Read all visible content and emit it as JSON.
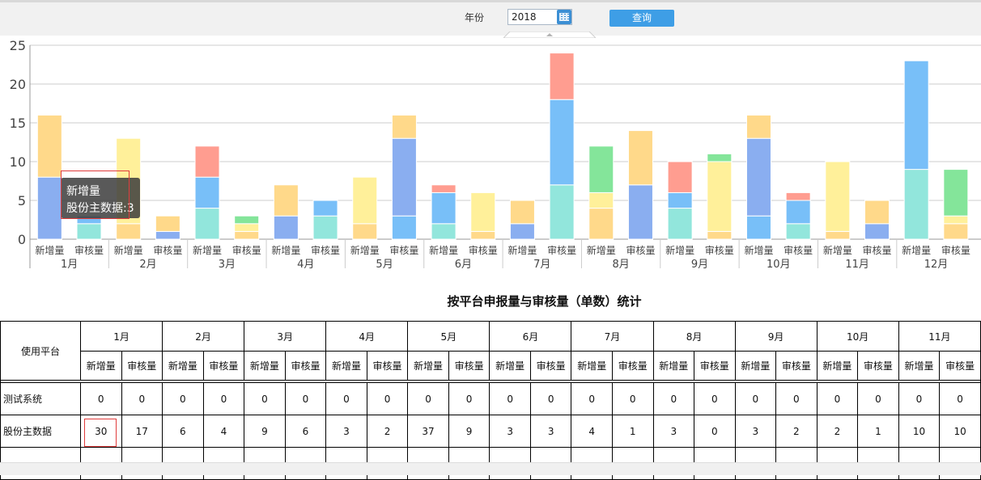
{
  "toolbar": {
    "year_label": "年份",
    "year_value": "2018",
    "query_label": "查询",
    "calendar_icon": "calendar-icon"
  },
  "chart_data": {
    "type": "bar",
    "stacked": true,
    "ylim": [
      0,
      25
    ],
    "yticks": [
      0,
      5,
      10,
      15,
      20,
      25
    ],
    "grid": true,
    "months": [
      "1月",
      "2月",
      "3月",
      "4月",
      "5月",
      "6月",
      "7月",
      "8月",
      "9月",
      "10月",
      "11月",
      "12月"
    ],
    "sub_categories": [
      "新增量",
      "审核量"
    ],
    "bars": [
      {
        "month": "1月",
        "sub": "新增量",
        "segments": [
          {
            "value": 8,
            "color": "#8aaef0"
          },
          {
            "value": 8,
            "color": "#ffd98a"
          }
        ]
      },
      {
        "month": "1月",
        "sub": "审核量",
        "segments": [
          {
            "value": 2,
            "color": "#92e6dc"
          },
          {
            "value": 1,
            "color": "#78bff8"
          }
        ]
      },
      {
        "month": "2月",
        "sub": "新增量",
        "segments": [
          {
            "value": 2,
            "color": "#ffd98a"
          },
          {
            "value": 11,
            "color": "#fff09a"
          }
        ]
      },
      {
        "month": "2月",
        "sub": "审核量",
        "segments": [
          {
            "value": 1,
            "color": "#8aaef0"
          },
          {
            "value": 2,
            "color": "#ffd98a"
          }
        ]
      },
      {
        "month": "3月",
        "sub": "新增量",
        "segments": [
          {
            "value": 4,
            "color": "#92e6dc"
          },
          {
            "value": 4,
            "color": "#78bff8"
          },
          {
            "value": 4,
            "color": "#ff9d90"
          }
        ]
      },
      {
        "month": "3月",
        "sub": "审核量",
        "segments": [
          {
            "value": 1,
            "color": "#ffd98a"
          },
          {
            "value": 1,
            "color": "#fff09a"
          },
          {
            "value": 1,
            "color": "#84e59a"
          }
        ]
      },
      {
        "month": "4月",
        "sub": "新增量",
        "segments": [
          {
            "value": 3,
            "color": "#8aaef0"
          },
          {
            "value": 4,
            "color": "#ffd98a"
          }
        ]
      },
      {
        "month": "4月",
        "sub": "审核量",
        "segments": [
          {
            "value": 3,
            "color": "#92e6dc"
          },
          {
            "value": 2,
            "color": "#78bff8"
          }
        ]
      },
      {
        "month": "5月",
        "sub": "新增量",
        "segments": [
          {
            "value": 2,
            "color": "#ffd98a"
          },
          {
            "value": 6,
            "color": "#fff09a"
          }
        ]
      },
      {
        "month": "5月",
        "sub": "审核量",
        "segments": [
          {
            "value": 3,
            "color": "#78bff8"
          },
          {
            "value": 10,
            "color": "#8aaef0"
          },
          {
            "value": 3,
            "color": "#ffd98a"
          }
        ]
      },
      {
        "month": "6月",
        "sub": "新增量",
        "segments": [
          {
            "value": 2,
            "color": "#92e6dc"
          },
          {
            "value": 4,
            "color": "#78bff8"
          },
          {
            "value": 1,
            "color": "#ff9d90"
          }
        ]
      },
      {
        "month": "6月",
        "sub": "审核量",
        "segments": [
          {
            "value": 1,
            "color": "#ffd98a"
          },
          {
            "value": 5,
            "color": "#fff09a"
          }
        ]
      },
      {
        "month": "7月",
        "sub": "新增量",
        "segments": [
          {
            "value": 2,
            "color": "#8aaef0"
          },
          {
            "value": 3,
            "color": "#ffd98a"
          }
        ]
      },
      {
        "month": "7月",
        "sub": "审核量",
        "segments": [
          {
            "value": 7,
            "color": "#92e6dc"
          },
          {
            "value": 11,
            "color": "#78bff8"
          },
          {
            "value": 6,
            "color": "#ff9d90"
          }
        ]
      },
      {
        "month": "8月",
        "sub": "新增量",
        "segments": [
          {
            "value": 4,
            "color": "#ffd98a"
          },
          {
            "value": 2,
            "color": "#fff09a"
          },
          {
            "value": 6,
            "color": "#84e59a"
          }
        ]
      },
      {
        "month": "8月",
        "sub": "审核量",
        "segments": [
          {
            "value": 7,
            "color": "#8aaef0"
          },
          {
            "value": 7,
            "color": "#ffd98a"
          }
        ]
      },
      {
        "month": "9月",
        "sub": "新增量",
        "segments": [
          {
            "value": 4,
            "color": "#92e6dc"
          },
          {
            "value": 2,
            "color": "#78bff8"
          },
          {
            "value": 4,
            "color": "#ff9d90"
          }
        ]
      },
      {
        "month": "9月",
        "sub": "审核量",
        "segments": [
          {
            "value": 1,
            "color": "#ffd98a"
          },
          {
            "value": 9,
            "color": "#fff09a"
          },
          {
            "value": 1,
            "color": "#84e59a"
          }
        ]
      },
      {
        "month": "10月",
        "sub": "新增量",
        "segments": [
          {
            "value": 3,
            "color": "#78bff8"
          },
          {
            "value": 10,
            "color": "#8aaef0"
          },
          {
            "value": 3,
            "color": "#ffd98a"
          }
        ]
      },
      {
        "month": "10月",
        "sub": "审核量",
        "segments": [
          {
            "value": 2,
            "color": "#92e6dc"
          },
          {
            "value": 3,
            "color": "#78bff8"
          },
          {
            "value": 1,
            "color": "#ff9d90"
          }
        ]
      },
      {
        "month": "11月",
        "sub": "新增量",
        "segments": [
          {
            "value": 1,
            "color": "#ffd98a"
          },
          {
            "value": 9,
            "color": "#fff09a"
          }
        ]
      },
      {
        "month": "11月",
        "sub": "审核量",
        "segments": [
          {
            "value": 2,
            "color": "#8aaef0"
          },
          {
            "value": 3,
            "color": "#ffd98a"
          }
        ]
      },
      {
        "month": "12月",
        "sub": "新增量",
        "segments": [
          {
            "value": 9,
            "color": "#92e6dc"
          },
          {
            "value": 14,
            "color": "#78bff8"
          }
        ]
      },
      {
        "month": "12月",
        "sub": "审核量",
        "segments": [
          {
            "value": 2,
            "color": "#ffd98a"
          },
          {
            "value": 1,
            "color": "#fff09a"
          },
          {
            "value": 6,
            "color": "#84e59a"
          }
        ]
      }
    ],
    "tooltip": {
      "series": "新增量",
      "label": "股份主数据",
      "value": "3"
    }
  },
  "table": {
    "title": "按平台申报量与审核量（单数）统计",
    "platform_header": "使用平台",
    "months": [
      "1月",
      "2月",
      "3月",
      "4月",
      "5月",
      "6月",
      "7月",
      "8月",
      "9月",
      "10月",
      "11月"
    ],
    "sub_headers": [
      "新增量",
      "审核量"
    ],
    "rows": [
      {
        "name": "测试系统",
        "values": [
          "0",
          "0",
          "0",
          "0",
          "0",
          "0",
          "0",
          "0",
          "0",
          "0",
          "0",
          "0",
          "0",
          "0",
          "0",
          "0",
          "0",
          "0",
          "0",
          "0",
          "0",
          "0"
        ]
      },
      {
        "name": "股份主数据",
        "values": [
          "30",
          "17",
          "6",
          "4",
          "9",
          "6",
          "3",
          "2",
          "37",
          "9",
          "3",
          "3",
          "4",
          "1",
          "3",
          "0",
          "3",
          "2",
          "2",
          "1",
          "10",
          "10"
        ]
      }
    ]
  }
}
